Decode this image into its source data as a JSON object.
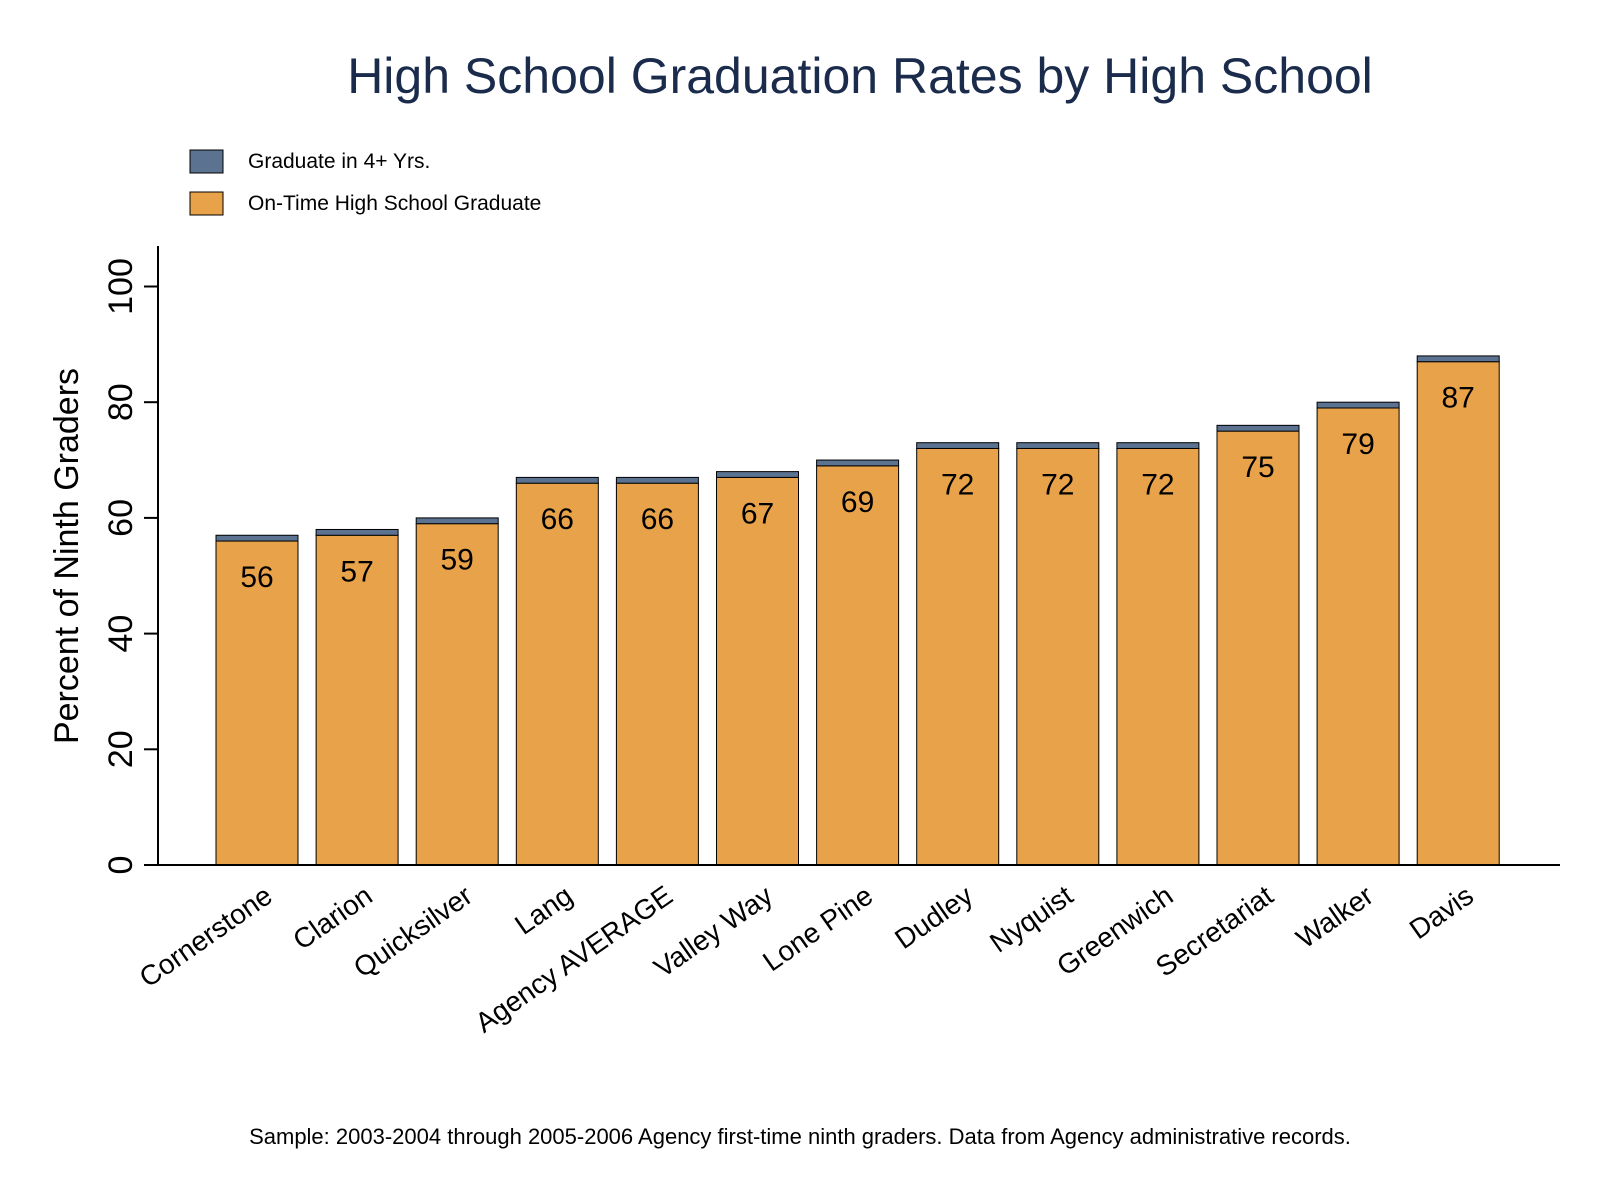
{
  "chart_data": {
    "type": "bar",
    "stacked": true,
    "title": "High School Graduation Rates by High School",
    "ylabel": "Percent of Ninth Graders",
    "xlabel": "",
    "ylim": [
      0,
      107
    ],
    "yticks": [
      0,
      20,
      40,
      60,
      80,
      100
    ],
    "grid": false,
    "legend_position": "top-left",
    "categories": [
      "Cornerstone",
      "Clarion",
      "Quicksilver",
      "Lang",
      "Agency AVERAGE",
      "Valley Way",
      "Lone Pine",
      "Dudley",
      "Nyquist",
      "Greenwich",
      "Secretariat",
      "Walker",
      "Davis"
    ],
    "series": [
      {
        "name": "On-Time High School Graduate",
        "color": "#e8a24a",
        "values": [
          56,
          57,
          59,
          66,
          66,
          67,
          69,
          72,
          72,
          72,
          75,
          79,
          87
        ]
      },
      {
        "name": "Graduate in 4+ Yrs.",
        "color": "#5b7390",
        "values": [
          1,
          1,
          1,
          1,
          1,
          1,
          1,
          1,
          1,
          1,
          1,
          1,
          1
        ]
      }
    ],
    "bar_labels": [
      "56",
      "57",
      "59",
      "66",
      "66",
      "67",
      "69",
      "72",
      "72",
      "72",
      "75",
      "79",
      "87"
    ],
    "note": "Sample: 2003-2004 through 2005-2006 Agency first-time ninth graders. Data from Agency administrative records."
  }
}
